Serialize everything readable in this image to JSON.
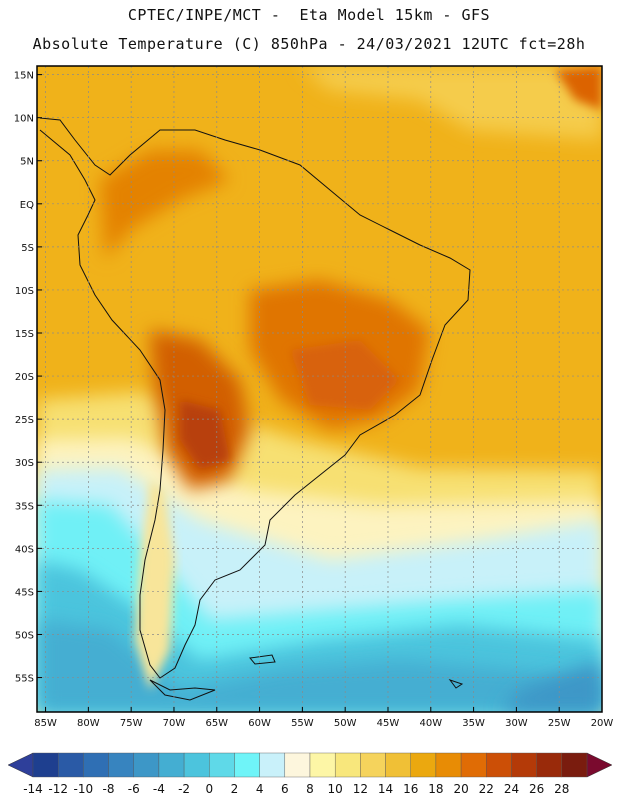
{
  "header": {
    "line1": "CPTEC/INPE/MCT -  Eta Model 15km - GFS",
    "line2": "Absolute Temperature (C) 850hPa - 24/03/2021 12UTC fct=28h"
  },
  "map": {
    "region": "South America",
    "lat_labels": [
      "15N",
      "10N",
      "5N",
      "EQ",
      "5S",
      "10S",
      "15S",
      "20S",
      "25S",
      "30S",
      "35S",
      "40S",
      "45S",
      "50S",
      "55S"
    ],
    "lon_labels": [
      "85W",
      "80W",
      "75W",
      "70W",
      "65W",
      "60W",
      "55W",
      "50W",
      "45W",
      "40W",
      "35W",
      "30W",
      "25W",
      "20W"
    ],
    "lat_range": [
      16,
      -59
    ],
    "lon_range": [
      -86,
      -20
    ]
  },
  "colorbar": {
    "labels": [
      "-14",
      "-12",
      "-10",
      "-8",
      "-6",
      "-4",
      "-2",
      "0",
      "2",
      "4",
      "6",
      "8",
      "10",
      "12",
      "14",
      "16",
      "18",
      "20",
      "22",
      "24",
      "26",
      "28"
    ],
    "colors": [
      "#1e3f8f",
      "#2a5aa6",
      "#2f6fb4",
      "#3784bf",
      "#3d97c7",
      "#44aed2",
      "#4cc4dd",
      "#5fd9e8",
      "#6ff4f8",
      "#c9f1fa",
      "#fdf6dd",
      "#fdf6a6",
      "#f8e77c",
      "#f5d35c",
      "#f0c036",
      "#eba80f",
      "#e88c05",
      "#e06c05",
      "#cc4f06",
      "#b43a08",
      "#992a0a",
      "#7a1c0e"
    ],
    "under_color": "#2e3f9a",
    "over_color": "#7a0a2e"
  }
}
